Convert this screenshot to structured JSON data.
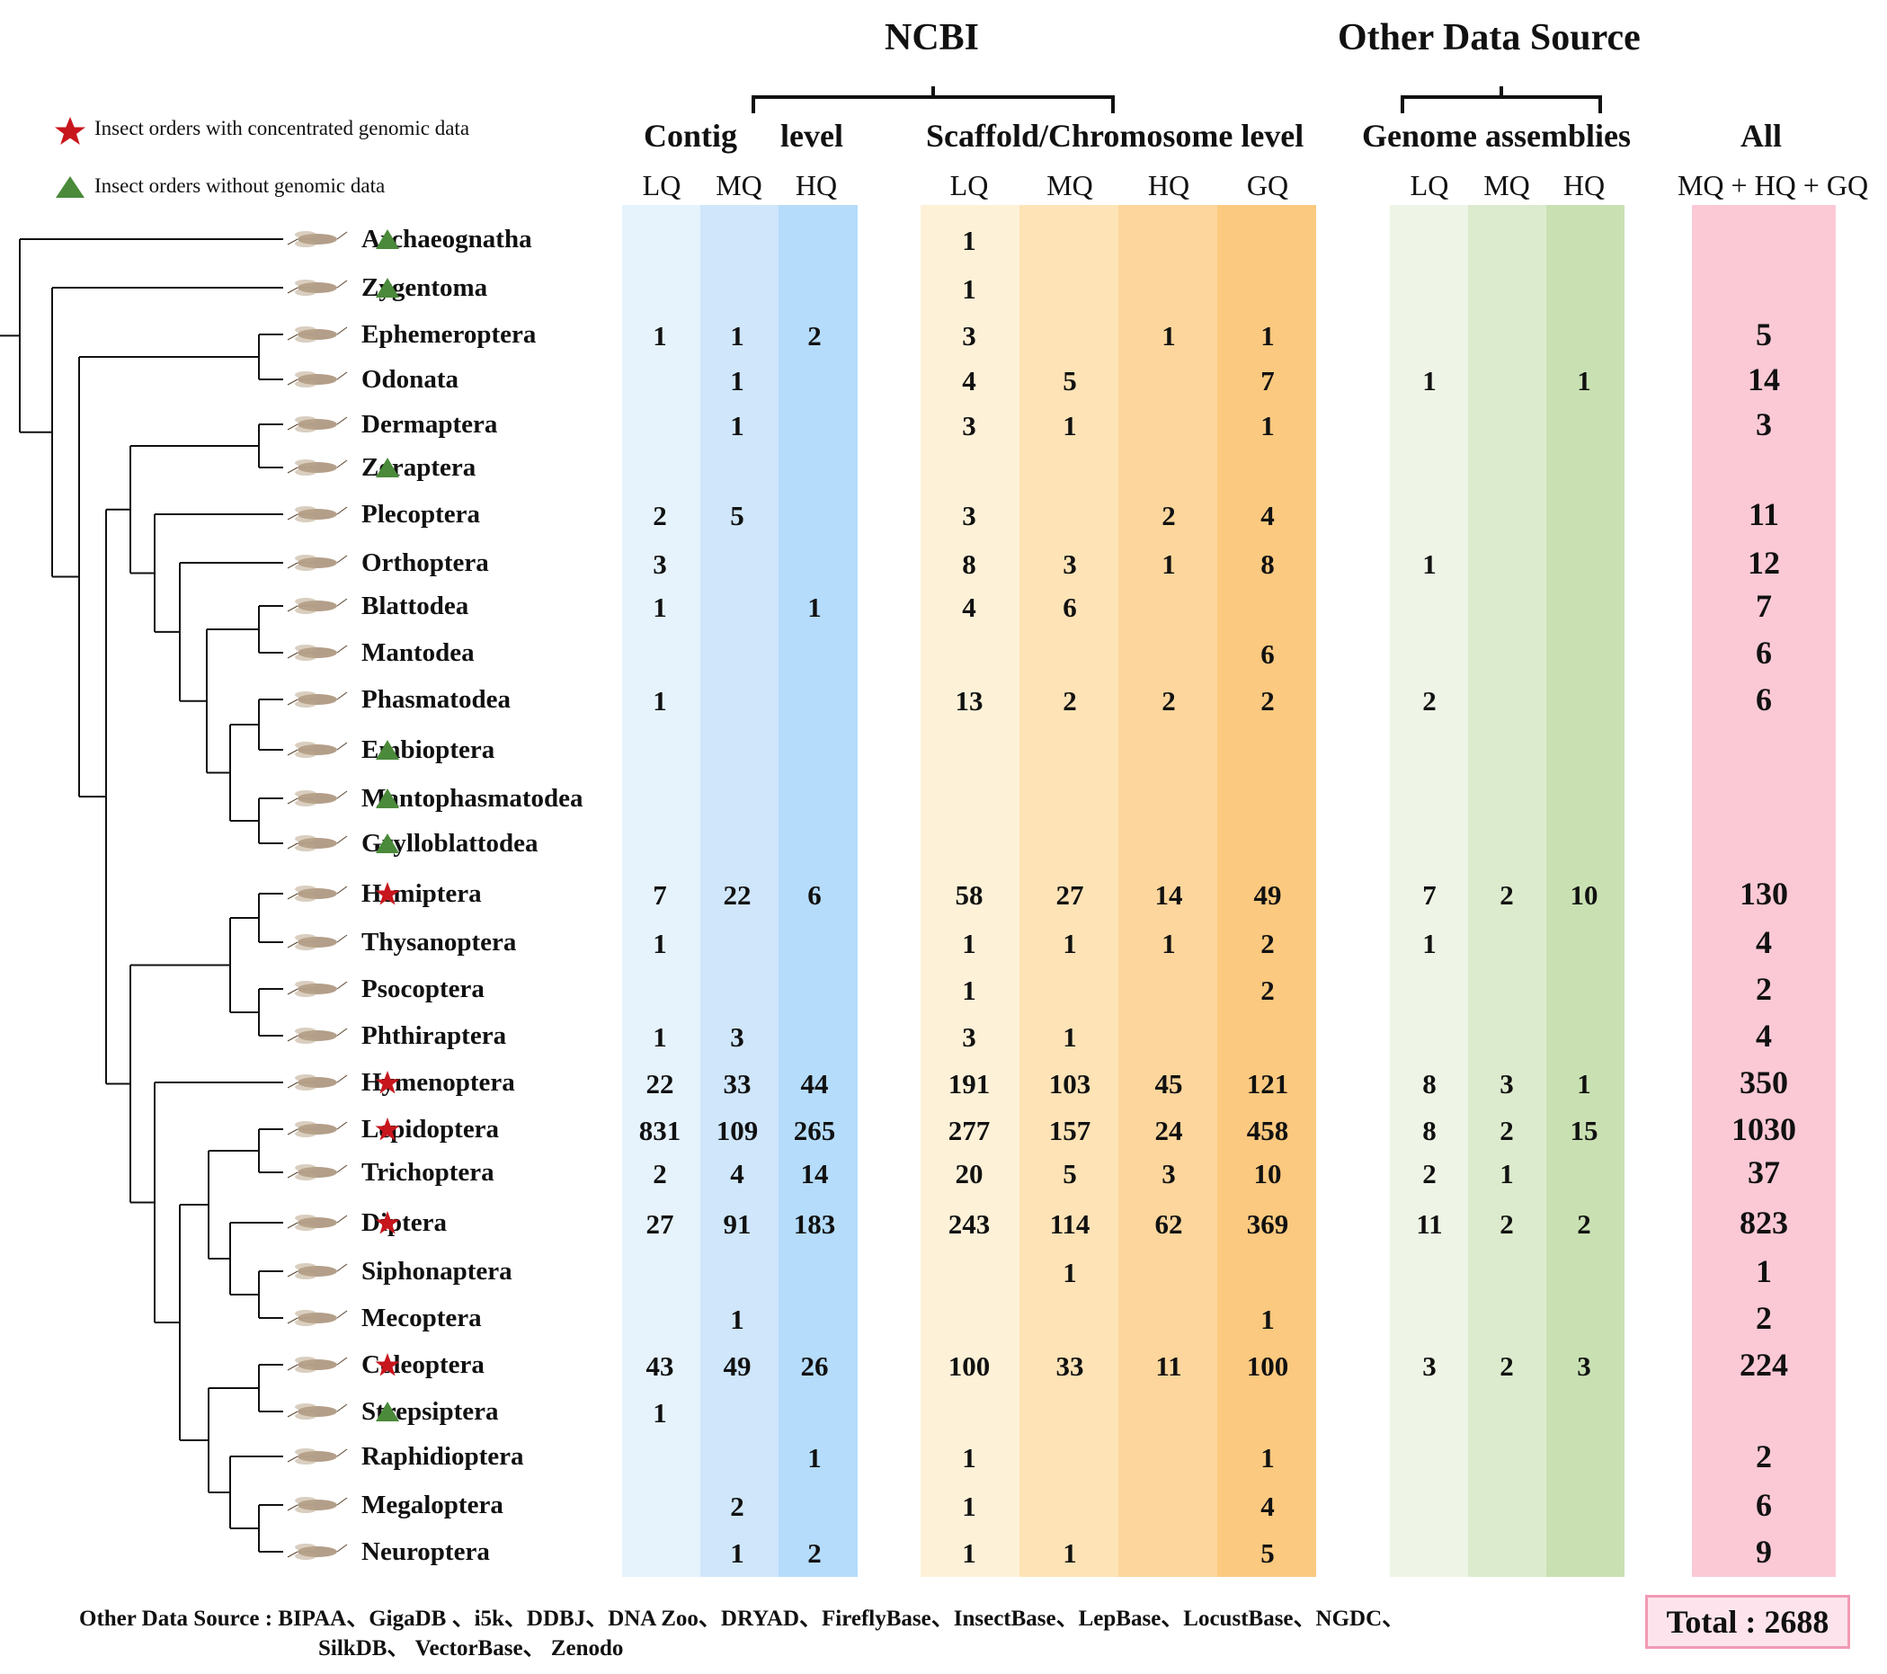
{
  "legend": {
    "concentrated": "Insect orders with concentrated genomic data",
    "without": "Insect orders without genomic data",
    "star_color": "#c8161d",
    "triangle_color": "#4a8a3a"
  },
  "headers": {
    "ncbi": "NCBI",
    "other_data_source": "Other  Data Source",
    "contig_a": "Contig",
    "contig_b": "level",
    "scaffold": "Scaffold/Chromosome level",
    "genome_assemblies": "Genome assemblies",
    "all": "All",
    "sub_lq": "LQ",
    "sub_mq": "MQ",
    "sub_hq": "HQ",
    "sub_gq": "GQ",
    "sub_all": "MQ + HQ + GQ"
  },
  "band_colors": {
    "contig": [
      "#e6f3fd",
      "#cfe6fb",
      "#b5dcfb"
    ],
    "scaffold": [
      "#fdf1d8",
      "#fde3b6",
      "#fcd69c",
      "#fbc97f"
    ],
    "other": [
      "#eef5e6",
      "#dcebcd",
      "#c9e1b2"
    ],
    "all": "#fbc9d6"
  },
  "orders": [
    {
      "name": "Archaeognatha",
      "mark": "triangle",
      "c_lq": "",
      "c_mq": "",
      "c_hq": "",
      "s_lq": "1",
      "s_mq": "",
      "s_hq": "",
      "s_gq": "",
      "o_lq": "",
      "o_mq": "",
      "o_hq": "",
      "all": ""
    },
    {
      "name": "Zygentoma",
      "mark": "triangle",
      "c_lq": "",
      "c_mq": "",
      "c_hq": "",
      "s_lq": "1",
      "s_mq": "",
      "s_hq": "",
      "s_gq": "",
      "o_lq": "",
      "o_mq": "",
      "o_hq": "",
      "all": ""
    },
    {
      "name": "Ephemeroptera",
      "mark": "",
      "c_lq": "1",
      "c_mq": "1",
      "c_hq": "2",
      "s_lq": "3",
      "s_mq": "",
      "s_hq": "1",
      "s_gq": "1",
      "o_lq": "",
      "o_mq": "",
      "o_hq": "",
      "all": "5"
    },
    {
      "name": "Odonata",
      "mark": "",
      "c_lq": "",
      "c_mq": "1",
      "c_hq": "",
      "s_lq": "4",
      "s_mq": "5",
      "s_hq": "",
      "s_gq": "7",
      "o_lq": "1",
      "o_mq": "",
      "o_hq": "1",
      "all": "14"
    },
    {
      "name": "Dermaptera",
      "mark": "",
      "c_lq": "",
      "c_mq": "1",
      "c_hq": "",
      "s_lq": "3",
      "s_mq": "1",
      "s_hq": "",
      "s_gq": "1",
      "o_lq": "",
      "o_mq": "",
      "o_hq": "",
      "all": "3"
    },
    {
      "name": "Zoraptera",
      "mark": "triangle",
      "c_lq": "",
      "c_mq": "",
      "c_hq": "",
      "s_lq": "",
      "s_mq": "",
      "s_hq": "",
      "s_gq": "",
      "o_lq": "",
      "o_mq": "",
      "o_hq": "",
      "all": ""
    },
    {
      "name": "Plecoptera",
      "mark": "",
      "c_lq": "2",
      "c_mq": "5",
      "c_hq": "",
      "s_lq": "3",
      "s_mq": "",
      "s_hq": "2",
      "s_gq": "4",
      "o_lq": "",
      "o_mq": "",
      "o_hq": "",
      "all": "11"
    },
    {
      "name": "Orthoptera",
      "mark": "",
      "c_lq": "3",
      "c_mq": "",
      "c_hq": "",
      "s_lq": "8",
      "s_mq": "3",
      "s_hq": "1",
      "s_gq": "8",
      "o_lq": "1",
      "o_mq": "",
      "o_hq": "",
      "all": "12"
    },
    {
      "name": "Blattodea",
      "mark": "",
      "c_lq": "1",
      "c_mq": "",
      "c_hq": "1",
      "s_lq": "4",
      "s_mq": "6",
      "s_hq": "",
      "s_gq": "",
      "o_lq": "",
      "o_mq": "",
      "o_hq": "",
      "all": "7"
    },
    {
      "name": "Mantodea",
      "mark": "",
      "c_lq": "",
      "c_mq": "",
      "c_hq": "",
      "s_lq": "",
      "s_mq": "",
      "s_hq": "",
      "s_gq": "6",
      "o_lq": "",
      "o_mq": "",
      "o_hq": "",
      "all": "6"
    },
    {
      "name": "Phasmatodea",
      "mark": "",
      "c_lq": "1",
      "c_mq": "",
      "c_hq": "",
      "s_lq": "13",
      "s_mq": "2",
      "s_hq": "2",
      "s_gq": "2",
      "o_lq": "2",
      "o_mq": "",
      "o_hq": "",
      "all": "6"
    },
    {
      "name": "Embioptera",
      "mark": "triangle",
      "c_lq": "",
      "c_mq": "",
      "c_hq": "",
      "s_lq": "",
      "s_mq": "",
      "s_hq": "",
      "s_gq": "",
      "o_lq": "",
      "o_mq": "",
      "o_hq": "",
      "all": ""
    },
    {
      "name": "Mantophasmatodea",
      "mark": "triangle",
      "c_lq": "",
      "c_mq": "",
      "c_hq": "",
      "s_lq": "",
      "s_mq": "",
      "s_hq": "",
      "s_gq": "",
      "o_lq": "",
      "o_mq": "",
      "o_hq": "",
      "all": ""
    },
    {
      "name": "Grylloblattodea",
      "mark": "triangle",
      "c_lq": "",
      "c_mq": "",
      "c_hq": "",
      "s_lq": "",
      "s_mq": "",
      "s_hq": "",
      "s_gq": "",
      "o_lq": "",
      "o_mq": "",
      "o_hq": "",
      "all": ""
    },
    {
      "name": "Hemiptera",
      "mark": "star",
      "c_lq": "7",
      "c_mq": "22",
      "c_hq": "6",
      "s_lq": "58",
      "s_mq": "27",
      "s_hq": "14",
      "s_gq": "49",
      "o_lq": "7",
      "o_mq": "2",
      "o_hq": "10",
      "all": "130"
    },
    {
      "name": "Thysanoptera",
      "mark": "",
      "c_lq": "1",
      "c_mq": "",
      "c_hq": "",
      "s_lq": "1",
      "s_mq": "1",
      "s_hq": "1",
      "s_gq": "2",
      "o_lq": "1",
      "o_mq": "",
      "o_hq": "",
      "all": "4"
    },
    {
      "name": "Psocoptera",
      "mark": "",
      "c_lq": "",
      "c_mq": "",
      "c_hq": "",
      "s_lq": "1",
      "s_mq": "",
      "s_hq": "",
      "s_gq": "2",
      "o_lq": "",
      "o_mq": "",
      "o_hq": "",
      "all": "2"
    },
    {
      "name": "Phthiraptera",
      "mark": "",
      "c_lq": "1",
      "c_mq": "3",
      "c_hq": "",
      "s_lq": "3",
      "s_mq": "1",
      "s_hq": "",
      "s_gq": "",
      "o_lq": "",
      "o_mq": "",
      "o_hq": "",
      "all": "4"
    },
    {
      "name": "Hymenoptera",
      "mark": "star",
      "c_lq": "22",
      "c_mq": "33",
      "c_hq": "44",
      "s_lq": "191",
      "s_mq": "103",
      "s_hq": "45",
      "s_gq": "121",
      "o_lq": "8",
      "o_mq": "3",
      "o_hq": "1",
      "all": "350"
    },
    {
      "name": "Lepidoptera",
      "mark": "star",
      "c_lq": "831",
      "c_mq": "109",
      "c_hq": "265",
      "s_lq": "277",
      "s_mq": "157",
      "s_hq": "24",
      "s_gq": "458",
      "o_lq": "8",
      "o_mq": "2",
      "o_hq": "15",
      "all": "1030"
    },
    {
      "name": "Trichoptera",
      "mark": "",
      "c_lq": "2",
      "c_mq": "4",
      "c_hq": "14",
      "s_lq": "20",
      "s_mq": "5",
      "s_hq": "3",
      "s_gq": "10",
      "o_lq": "2",
      "o_mq": "1",
      "o_hq": "",
      "all": "37"
    },
    {
      "name": "Diptera",
      "mark": "star",
      "c_lq": "27",
      "c_mq": "91",
      "c_hq": "183",
      "s_lq": "243",
      "s_mq": "114",
      "s_hq": "62",
      "s_gq": "369",
      "o_lq": "11",
      "o_mq": "2",
      "o_hq": "2",
      "all": "823"
    },
    {
      "name": "Siphonaptera",
      "mark": "",
      "c_lq": "",
      "c_mq": "",
      "c_hq": "",
      "s_lq": "",
      "s_mq": "1",
      "s_hq": "",
      "s_gq": "",
      "o_lq": "",
      "o_mq": "",
      "o_hq": "",
      "all": "1"
    },
    {
      "name": "Mecoptera",
      "mark": "",
      "c_lq": "",
      "c_mq": "1",
      "c_hq": "",
      "s_lq": "",
      "s_mq": "",
      "s_hq": "",
      "s_gq": "1",
      "o_lq": "",
      "o_mq": "",
      "o_hq": "",
      "all": "2"
    },
    {
      "name": "Coleoptera",
      "mark": "star",
      "c_lq": "43",
      "c_mq": "49",
      "c_hq": "26",
      "s_lq": "100",
      "s_mq": "33",
      "s_hq": "11",
      "s_gq": "100",
      "o_lq": "3",
      "o_mq": "2",
      "o_hq": "3",
      "all": "224"
    },
    {
      "name": "Strepsiptera",
      "mark": "triangle",
      "c_lq": "1",
      "c_mq": "",
      "c_hq": "",
      "s_lq": "",
      "s_mq": "",
      "s_hq": "",
      "s_gq": "",
      "o_lq": "",
      "o_mq": "",
      "o_hq": "",
      "all": ""
    },
    {
      "name": "Raphidioptera",
      "mark": "",
      "c_lq": "",
      "c_mq": "",
      "c_hq": "1",
      "s_lq": "1",
      "s_mq": "",
      "s_hq": "",
      "s_gq": "1",
      "o_lq": "",
      "o_mq": "",
      "o_hq": "",
      "all": "2"
    },
    {
      "name": "Megaloptera",
      "mark": "",
      "c_lq": "",
      "c_mq": "2",
      "c_hq": "",
      "s_lq": "1",
      "s_mq": "",
      "s_hq": "",
      "s_gq": "4",
      "o_lq": "",
      "o_mq": "",
      "o_hq": "",
      "all": "6"
    },
    {
      "name": "Neuroptera",
      "mark": "",
      "c_lq": "",
      "c_mq": "1",
      "c_hq": "2",
      "s_lq": "1",
      "s_mq": "1",
      "s_hq": "",
      "s_gq": "5",
      "o_lq": "",
      "o_mq": "",
      "o_hq": "",
      "all": "9"
    }
  ],
  "footer": {
    "line1": "Other  Data Source :  BIPAA、GigaDB 、i5k、DDBJ、DNA Zoo、DRYAD、FireflyBase、InsectBase、LepBase、LocustBase、NGDC、",
    "line2": "SilkDB、  VectorBase、 Zenodo"
  },
  "total": "Total :   2688"
}
